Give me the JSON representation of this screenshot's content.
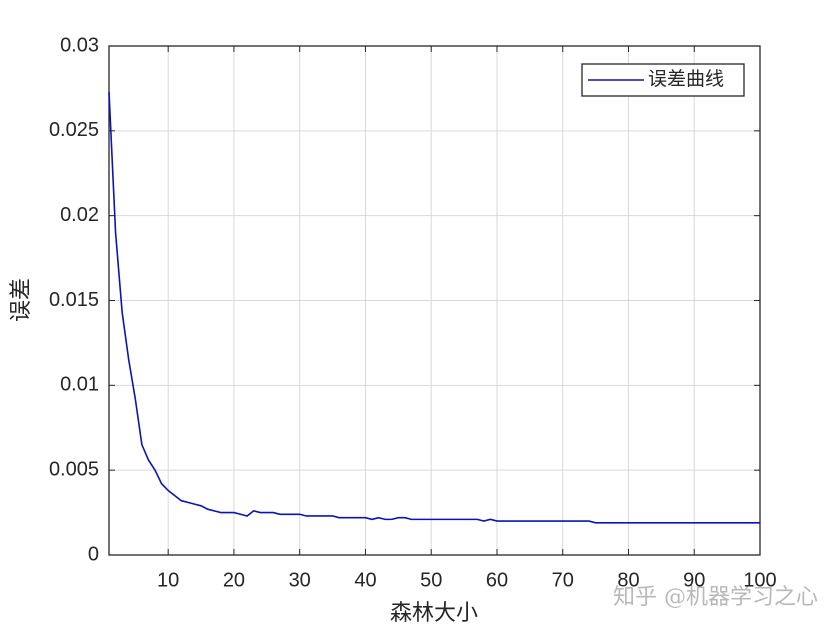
{
  "chart_data": {
    "type": "line",
    "xlabel": "森林大小",
    "ylabel": "误差",
    "x": [
      1,
      2,
      3,
      4,
      5,
      6,
      7,
      8,
      9,
      10,
      11,
      12,
      13,
      14,
      15,
      16,
      17,
      18,
      19,
      20,
      21,
      22,
      23,
      24,
      25,
      26,
      27,
      28,
      29,
      30,
      31,
      32,
      33,
      34,
      35,
      36,
      37,
      38,
      39,
      40,
      41,
      42,
      43,
      44,
      45,
      46,
      47,
      48,
      49,
      50,
      51,
      52,
      53,
      54,
      55,
      56,
      57,
      58,
      59,
      60,
      61,
      62,
      63,
      64,
      65,
      66,
      67,
      68,
      69,
      70,
      71,
      72,
      73,
      74,
      75,
      76,
      77,
      78,
      79,
      80,
      81,
      82,
      83,
      84,
      85,
      86,
      87,
      88,
      89,
      90,
      91,
      92,
      93,
      94,
      95,
      96,
      97,
      98,
      99,
      100
    ],
    "series": [
      {
        "name": "误差曲线",
        "color": "#0a14b8",
        "values": [
          0.0273,
          0.019,
          0.0143,
          0.0115,
          0.0092,
          0.0065,
          0.0056,
          0.005,
          0.0042,
          0.0038,
          0.0035,
          0.0032,
          0.0031,
          0.003,
          0.0029,
          0.0027,
          0.0026,
          0.0025,
          0.0025,
          0.0025,
          0.0024,
          0.0023,
          0.0026,
          0.0025,
          0.0025,
          0.0025,
          0.0024,
          0.0024,
          0.0024,
          0.0024,
          0.0023,
          0.0023,
          0.0023,
          0.0023,
          0.0023,
          0.0022,
          0.0022,
          0.0022,
          0.0022,
          0.0022,
          0.0021,
          0.0022,
          0.0021,
          0.0021,
          0.0022,
          0.0022,
          0.0021,
          0.0021,
          0.0021,
          0.0021,
          0.0021,
          0.0021,
          0.0021,
          0.0021,
          0.0021,
          0.0021,
          0.0021,
          0.002,
          0.0021,
          0.002,
          0.002,
          0.002,
          0.002,
          0.002,
          0.002,
          0.002,
          0.002,
          0.002,
          0.002,
          0.002,
          0.002,
          0.002,
          0.002,
          0.002,
          0.0019,
          0.0019,
          0.0019,
          0.0019,
          0.0019,
          0.0019,
          0.0019,
          0.0019,
          0.0019,
          0.0019,
          0.0019,
          0.0019,
          0.0019,
          0.0019,
          0.0019,
          0.0019,
          0.0019,
          0.0019,
          0.0019,
          0.0019,
          0.0019,
          0.0019,
          0.0019,
          0.0019,
          0.0019,
          0.0019
        ]
      }
    ],
    "xlim": [
      1,
      100
    ],
    "xticks": [
      10,
      20,
      30,
      40,
      50,
      60,
      70,
      80,
      90,
      100
    ],
    "ylim": [
      0,
      0.03
    ],
    "yticks": [
      0,
      0.005,
      0.01,
      0.015,
      0.02,
      0.025,
      0.03
    ],
    "grid": true,
    "legend": "northeast",
    "watermark": "知乎 @机器学习之心"
  }
}
